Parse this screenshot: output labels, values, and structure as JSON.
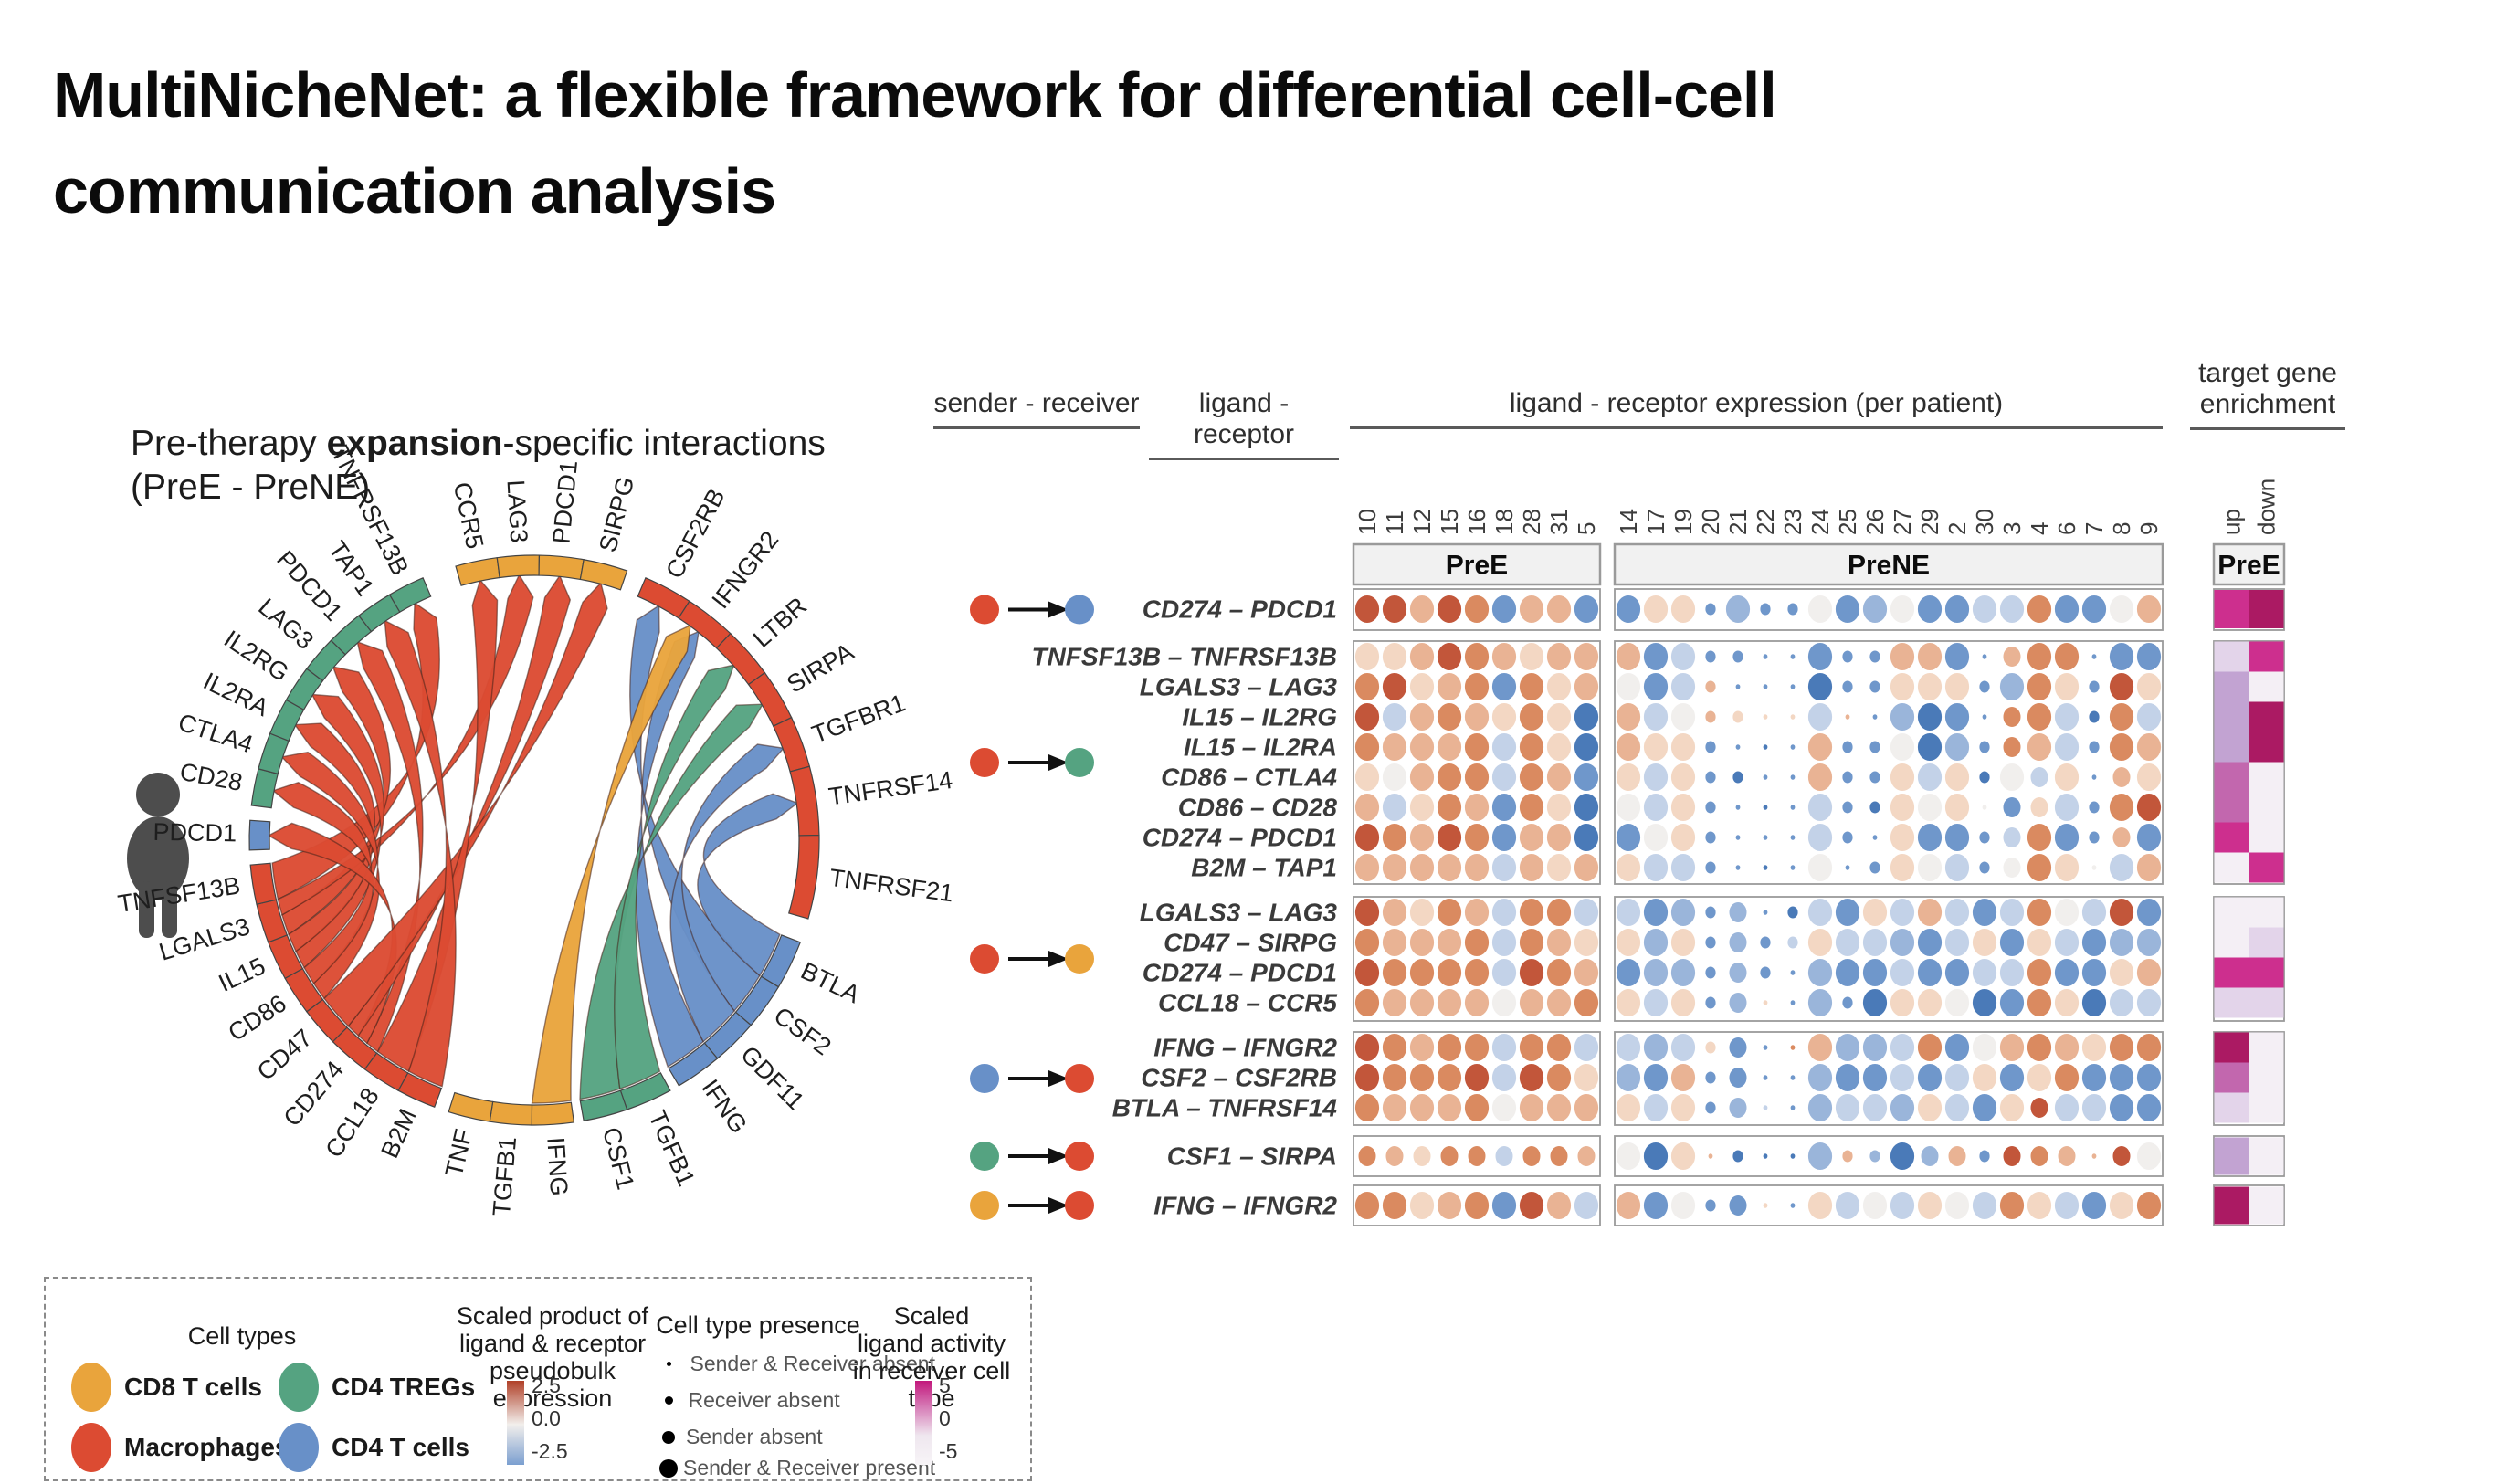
{
  "slide": {
    "title_line1": "MultiNicheNet: a flexible framework for differential cell-cell",
    "title_line2": "communication analysis"
  },
  "colors": {
    "cd8": "#E9A43C",
    "treg": "#55A381",
    "macro": "#DC4B32",
    "cd4": "#6890C8",
    "expr_scale": {
      "a": "#4a7ab8",
      "b": "#6f97cb",
      "c": "#9ab5da",
      "d": "#c3d2e8",
      "e": "#f1efed",
      "f": "#f3d7c3",
      "g": "#e9b394",
      "h": "#da8a60",
      "i": "#c2563a"
    },
    "enrich_scale": [
      "#f4eff5",
      "#e3d4ea",
      "#c2a3d2",
      "#c267ae",
      "#cd2f8e",
      "#ab1a63"
    ]
  },
  "chart_data": [
    {
      "type": "chord",
      "title_prefix": "Pre-therapy ",
      "title_bold": "expansion",
      "title_suffix": "-specific interactions",
      "title_line2": "(PreE - PreNE)",
      "segments": [
        {
          "label": "CCR5",
          "group": "cd8",
          "a0": -16,
          "a1": -7.5
        },
        {
          "label": "LAG3",
          "group": "cd8",
          "a0": -7.5,
          "a1": 1
        },
        {
          "label": "PDCD1",
          "group": "cd8",
          "a0": 1,
          "a1": 10
        },
        {
          "label": "SIRPG",
          "group": "cd8",
          "a0": 10,
          "a1": 19
        },
        {
          "label": "CSF2RB",
          "group": "macro",
          "a0": 23,
          "a1": 33
        },
        {
          "label": "IFNGR2",
          "group": "macro",
          "a0": 33,
          "a1": 43.5
        },
        {
          "label": "LTBR",
          "group": "macro",
          "a0": 43.5,
          "a1": 54
        },
        {
          "label": "SIRPA",
          "group": "macro",
          "a0": 54,
          "a1": 64.5
        },
        {
          "label": "TGFBR1",
          "group": "macro",
          "a0": 64.5,
          "a1": 75
        },
        {
          "label": "TNFRSF14",
          "group": "macro",
          "a0": 75,
          "a1": 89
        },
        {
          "label": "TNFRSF21",
          "group": "macro",
          "a0": 89,
          "a1": 106
        },
        {
          "label": "BTLA",
          "group": "cd4",
          "a0": 111,
          "a1": 121
        },
        {
          "label": "CSF2",
          "group": "cd4",
          "a0": 121,
          "a1": 130.5
        },
        {
          "label": "GDF11",
          "group": "cd4",
          "a0": 130.5,
          "a1": 140
        },
        {
          "label": "IFNG",
          "group": "cd4",
          "a0": 140,
          "a1": 149.5
        },
        {
          "label": "TGFB1",
          "group": "treg",
          "a0": 151.5,
          "a1": 161
        },
        {
          "label": "CSF1",
          "group": "treg",
          "a0": 161,
          "a1": 170
        },
        {
          "label": "IFNG",
          "group": "cd8",
          "a0": 172,
          "a1": 180.5
        },
        {
          "label": "TGFB1",
          "group": "cd8",
          "a0": 180.5,
          "a1": 189
        },
        {
          "label": "TNF",
          "group": "cd8",
          "a0": 189,
          "a1": 197.5
        },
        {
          "label": "B2M",
          "group": "macro",
          "a0": 200.5,
          "a1": 208.5
        },
        {
          "label": "CCL18",
          "group": "macro",
          "a0": 208.5,
          "a1": 216.5
        },
        {
          "label": "CD274",
          "group": "macro",
          "a0": 216.5,
          "a1": 225
        },
        {
          "label": "CD47",
          "group": "macro",
          "a0": 225,
          "a1": 233
        },
        {
          "label": "CD86",
          "group": "macro",
          "a0": 233,
          "a1": 241
        },
        {
          "label": "IL15",
          "group": "macro",
          "a0": 241,
          "a1": 249
        },
        {
          "label": "LGALS3",
          "group": "macro",
          "a0": 249,
          "a1": 257
        },
        {
          "label": "TNFSF13B",
          "group": "macro",
          "a0": 257,
          "a1": 265
        },
        {
          "label": "PDCD1",
          "group": "cd4",
          "a0": 268,
          "a1": 274
        },
        {
          "label": "CD28",
          "group": "treg",
          "a0": 277,
          "a1": 284.5
        },
        {
          "label": "CTLA4",
          "group": "treg",
          "a0": 284.5,
          "a1": 292
        },
        {
          "label": "IL2RA",
          "group": "treg",
          "a0": 292,
          "a1": 299.5
        },
        {
          "label": "IL2RG",
          "group": "treg",
          "a0": 299.5,
          "a1": 307
        },
        {
          "label": "LAG3",
          "group": "treg",
          "a0": 307,
          "a1": 314.5
        },
        {
          "label": "PDCD1",
          "group": "treg",
          "a0": 314.5,
          "a1": 322
        },
        {
          "label": "TAP1",
          "group": "treg",
          "a0": 322,
          "a1": 329.5
        },
        {
          "label": "TNFRSF13B",
          "group": "treg",
          "a0": 329.5,
          "a1": 337
        }
      ],
      "ribbons": [
        {
          "from": "TNFSF13B",
          "to": "TNFRSF13B",
          "group": "macro",
          "s": [
            257,
            265
          ],
          "t": 333.25
        },
        {
          "from": "LGALS3",
          "to": "LAG3",
          "group": "macro",
          "s": [
            249,
            253.5
          ],
          "t": 310.75
        },
        {
          "from": "LGALS3",
          "to": "LAG3",
          "group": "macro",
          "s": [
            253.5,
            257
          ],
          "t": -3.25
        },
        {
          "from": "IL15",
          "to": "IL2RG",
          "group": "macro",
          "s": [
            241,
            245
          ],
          "t": 303.25
        },
        {
          "from": "IL15",
          "to": "IL2RA",
          "group": "macro",
          "s": [
            245,
            249
          ],
          "t": 295.75
        },
        {
          "from": "CD86",
          "to": "CTLA4",
          "group": "macro",
          "s": [
            233,
            237
          ],
          "t": 288.25
        },
        {
          "from": "CD86",
          "to": "CD28",
          "group": "macro",
          "s": [
            237,
            241
          ],
          "t": 280.75
        },
        {
          "from": "CD274",
          "to": "PDCD1",
          "group": "macro",
          "s": [
            216.5,
            219.5
          ],
          "t": 318.25
        },
        {
          "from": "CD274",
          "to": "PDCD1",
          "group": "macro",
          "s": [
            219.5,
            222
          ],
          "t": 271
        },
        {
          "from": "CD274",
          "to": "PDCD1",
          "group": "macro",
          "s": [
            222,
            225
          ],
          "t": 5.5
        },
        {
          "from": "CD47",
          "to": "SIRPG",
          "group": "macro",
          "s": [
            225,
            233
          ],
          "t": 14.5
        },
        {
          "from": "CCL18",
          "to": "CCR5",
          "group": "macro",
          "s": [
            208.5,
            216.5
          ],
          "t": -11.75
        },
        {
          "from": "B2M",
          "to": "TAP1",
          "group": "macro",
          "s": [
            200.5,
            208.5
          ],
          "t": 325.75
        },
        {
          "from": "IFNG",
          "to": "IFNGR2",
          "group": "cd4",
          "s": [
            140,
            149.5
          ],
          "t": 38.25
        },
        {
          "from": "CSF2",
          "to": "CSF2RB",
          "group": "cd4",
          "s": [
            121,
            130.5
          ],
          "t": 28
        },
        {
          "from": "GDF11",
          "to": "TGFBR1",
          "group": "cd4",
          "s": [
            130.5,
            140
          ],
          "t": 69.75
        },
        {
          "from": "BTLA",
          "to": "TNFRSF14",
          "group": "cd4",
          "s": [
            111,
            121
          ],
          "t": 82
        },
        {
          "from": "CSF1",
          "to": "SIRPA",
          "group": "treg",
          "s": [
            161,
            170
          ],
          "t": 59.25
        },
        {
          "from": "TGFB1",
          "to": "LTBR",
          "group": "treg",
          "s": [
            151.5,
            161
          ],
          "t": 48.75
        },
        {
          "from": "IFNG",
          "to": "IFNGR2",
          "group": "cd8",
          "s": [
            172,
            180.5
          ],
          "t": 36
        }
      ]
    },
    {
      "type": "dot-heatmap",
      "headers": {
        "sender_receiver": "sender - receiver",
        "ligand_receptor": "ligand - receptor",
        "expression": "ligand - receptor expression (per patient)",
        "target_gene": "target gene enrichment"
      },
      "panel_labels": {
        "pre_e": "PreE",
        "pre_ne": "PreNE",
        "enrich": "PreE"
      },
      "enrich_cols": [
        "up",
        "down"
      ],
      "patients_pre_e": [
        "10",
        "11",
        "12",
        "15",
        "16",
        "18",
        "28",
        "31",
        "5"
      ],
      "patients_pre_ne": [
        "14",
        "17",
        "19",
        "20",
        "21",
        "22",
        "23",
        "24",
        "25",
        "26",
        "27",
        "29",
        "2",
        "30",
        "3",
        "4",
        "6",
        "7",
        "8",
        "9"
      ],
      "dot_encoding": {
        "color_levels": {
          "a": -2.5,
          "b": -1.9,
          "c": -1.2,
          "d": -0.6,
          "e": 0,
          "f": 0.6,
          "g": 1.2,
          "h": 1.9,
          "i": 2.5
        },
        "size_levels": {
          "1": "Sender & Receiver absent",
          "2": "Receiver absent",
          "3": "Sender absent",
          "4": "Sender & Receiver present"
        },
        "color_meaning": "Scaled product of ligand & receptor pseudobulk expression",
        "enrich_meaning": "Scaled ligand activity in receiver cell type, levels 0-5"
      },
      "groups": [
        {
          "sender": "macro",
          "receiver": "cd4",
          "rows": [
            {
              "label": "CD274 – PDCD1",
              "e": "i4 i4 g4 i4 h4 b4 g4 g4 b4",
              "n": "b4 f4 f4 b2 c4 b2 b2 e4 b4 c4 e4 b4 b4 d4 d4 h4 b4 b4 e4 g4",
              "enrich": [
                4,
                5
              ]
            }
          ]
        },
        {
          "sender": "macro",
          "receiver": "treg",
          "rows": [
            {
              "label": "TNFSF13B – TNFRSF13B",
              "e": "f4 f4 g4 i4 h4 g4 f4 g4 g4",
              "n": "g4 b4 d4 b2 b2 b1 b1 b4 b2 b2 g4 g4 b4 b1 g3 h4 h4 b1 b4 b4",
              "enrich": [
                1,
                4
              ]
            },
            {
              "label": "LGALS3 – LAG3",
              "e": "h4 i4 f4 g4 h4 b4 h4 f4 g4",
              "n": "e4 b4 d4 g2 b1 b1 b1 a4 b2 b2 f4 f4 f4 b2 c4 h4 f4 b2 i4 f4",
              "enrich": [
                2,
                0
              ]
            },
            {
              "label": "IL15 – IL2RG",
              "e": "i4 d4 g4 h4 g4 f4 h4 f4 a4",
              "n": "g4 d4 e4 g2 f2 f1 f1 d4 g1 b1 c4 a4 b4 b1 h3 h4 d4 a2 h4 d4",
              "enrich": [
                2,
                5
              ]
            },
            {
              "label": "IL15 – IL2RA",
              "e": "h4 g4 g4 g4 h4 d4 h4 f4 a4",
              "n": "g4 f4 f4 b2 b1 a1 b1 g4 b2 b2 e4 a4 c4 b2 h3 g4 d4 b2 h4 g4",
              "enrich": [
                2,
                5
              ]
            },
            {
              "label": "CD86 – CTLA4",
              "e": "f4 e4 g4 h4 h4 d4 h4 g4 b4",
              "n": "f4 d4 f4 b2 a2 b1 b1 g4 b2 b2 f4 d4 f4 a2 e4 d3 f4 b1 g3 f4",
              "enrich": [
                3,
                0
              ]
            },
            {
              "label": "CD86 – CD28",
              "e": "g4 d4 f4 h4 g4 b4 h4 f4 a4",
              "n": "e4 d4 f4 b2 b1 a1 b1 d4 b2 a2 f4 e4 f4 e1 b3 f3 d4 b2 h4 i4",
              "enrich": [
                3,
                0
              ]
            },
            {
              "label": "CD274 – PDCD1",
              "e": "i4 h4 g4 i4 h4 b4 g4 g4 a4",
              "n": "b4 e4 f4 b2 b1 b1 b1 d4 b2 b1 f4 b4 b4 b2 d3 h4 b4 b2 g3 b4",
              "enrich": [
                4,
                0
              ]
            },
            {
              "label": "B2M – TAP1",
              "e": "g4 g4 g4 g4 g4 d4 g4 f4 g4",
              "n": "f4 d4 d4 b2 b1 a1 b1 e4 b1 b2 f4 e4 d4 b2 e3 h4 f4 e1 d4 g4",
              "enrich": [
                0,
                4
              ]
            }
          ]
        },
        {
          "sender": "macro",
          "receiver": "cd8",
          "rows": [
            {
              "label": "LGALS3 – LAG3",
              "e": "i4 g4 f4 h4 g4 d4 h4 h4 d4",
              "n": "d4 b4 c4 b2 c3 b1 a2 d4 b4 f4 d4 g4 d4 b4 d4 h4 e4 d4 i4 b4",
              "enrich": [
                0,
                0
              ]
            },
            {
              "label": "CD47 – SIRPG",
              "e": "h4 g4 g4 g4 h4 d4 h4 g4 f4",
              "n": "f4 c4 f4 b2 c3 b2 d2 f4 d4 d4 c4 b4 d4 f4 b4 f4 d4 b4 c4 c4",
              "enrich": [
                0,
                1
              ]
            },
            {
              "label": "CD274 – PDCD1",
              "e": "i4 h4 h4 h4 h4 d4 i4 h4 g4",
              "n": "b4 c4 c4 b2 c3 b2 b1 c4 b4 b4 d4 b4 b4 d4 d4 h4 b4 b4 f4 g4",
              "enrich": [
                4,
                4
              ]
            },
            {
              "label": "CCL18 – CCR5",
              "e": "h4 g4 g4 g4 g4 e4 g4 g4 h4",
              "n": "f4 d4 f4 b2 c3 f1 b1 c4 b2 a4 f4 f4 e4 a4 b4 h4 f4 a4 d4 d4",
              "enrich": [
                1,
                1
              ]
            }
          ]
        },
        {
          "sender": "cd4",
          "receiver": "macro",
          "rows": [
            {
              "label": "IFNG – IFNGR2",
              "e": "i4 h4 g4 h4 h4 d4 h4 h4 d4",
              "n": "d4 c4 d4 f2 b3 b1 h1 g4 c4 c4 d4 h4 b4 e4 g4 h4 g4 f4 h4 h4",
              "enrich": [
                5,
                0
              ]
            },
            {
              "label": "CSF2 – CSF2RB",
              "e": "i4 h4 h4 h4 i4 d4 i4 h4 f4",
              "n": "c4 b4 g4 b2 b3 b1 b1 c4 b4 b4 d4 b4 d4 f4 b4 f4 h4 b4 b4 b4",
              "enrich": [
                3,
                0
              ]
            },
            {
              "label": "BTLA – TNFRSF14",
              "e": "h4 g4 g4 g4 h4 e4 g4 g4 g4",
              "n": "f4 d4 f4 b2 c3 d1 b1 c4 d4 d4 c4 f4 d4 b4 f4 i3 d4 d4 b4 b4",
              "enrich": [
                1,
                0
              ]
            }
          ]
        },
        {
          "sender": "treg",
          "receiver": "macro",
          "rows": [
            {
              "label": "CSF1 – SIRPA",
              "e": "h3 g3 f3 h3 h3 d3 h3 h3 g3",
              "n": "e4 a4 f4 g1 a2 a1 a1 c4 g2 c2 a4 c3 g3 b2 i3 h3 g3 g1 i3 e4",
              "enrich": [
                2,
                0
              ]
            }
          ]
        },
        {
          "sender": "cd8",
          "receiver": "macro",
          "rows": [
            {
              "label": "IFNG – IFNGR2",
              "e": "h4 h4 f4 g4 h4 b4 i4 g4 d4",
              "n": "g4 b4 e4 b2 b3 f1 b1 f4 d4 e4 d4 f4 e4 d4 h4 f4 d4 b4 f4 h4",
              "enrich": [
                5,
                0
              ]
            }
          ]
        }
      ]
    }
  ],
  "legend": {
    "cell_types_title": "Cell types",
    "cell_types": [
      {
        "label": "CD8 T cells",
        "group": "cd8"
      },
      {
        "label": "CD4 TREGs",
        "group": "treg"
      },
      {
        "label": "Macrophages",
        "group": "macro"
      },
      {
        "label": "CD4 T cells",
        "group": "cd4"
      }
    ],
    "product_title_lines": [
      "Scaled product of",
      "ligand & receptor",
      "pseudobulk expression"
    ],
    "product_ticks": [
      "2.5",
      "0.0",
      "-2.5"
    ],
    "presence_title": "Cell type presence",
    "presence_items": [
      "Sender & Receiver absent",
      "Receiver absent",
      "Sender absent",
      "Sender & Receiver present"
    ],
    "activity_title_lines": [
      "Scaled",
      "ligand activity",
      "in receiver cell type"
    ],
    "activity_ticks": [
      "5",
      "0",
      "-5"
    ]
  }
}
